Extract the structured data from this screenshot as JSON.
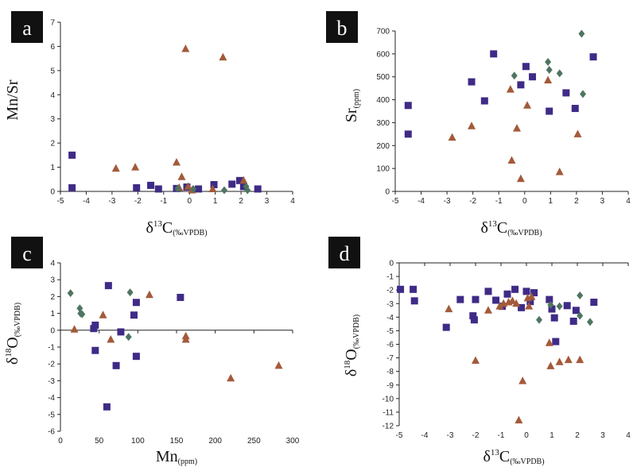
{
  "colors": {
    "square": "#3f2b87",
    "triangle": "#a35a3a",
    "diamond": "#4e7560"
  },
  "chart_data": [
    {
      "type": "scatter",
      "panel_label": "a",
      "xlabel": {
        "main": "δ",
        "sup": "13",
        "post": "C",
        "sub": "(‰VPDB)"
      },
      "ylabel": {
        "main": "Mn/Sr",
        "sub": ""
      },
      "xlim": [
        -5,
        4
      ],
      "ylim": [
        0,
        7
      ],
      "xticks": [
        "-5",
        "-4",
        "-3",
        "-2",
        "-1",
        "0",
        "1",
        "2",
        "3",
        "4"
      ],
      "yticks": [
        "0",
        "1",
        "2",
        "3",
        "4",
        "5",
        "6",
        "7"
      ],
      "grid": false,
      "series": [
        {
          "marker": "square",
          "points": [
            [
              -4.55,
              1.5
            ],
            [
              -4.55,
              0.15
            ],
            [
              -2.05,
              0.15
            ],
            [
              -1.5,
              0.25
            ],
            [
              -1.2,
              0.1
            ],
            [
              -0.5,
              0.12
            ],
            [
              -0.1,
              0.18
            ],
            [
              0.35,
              0.1
            ],
            [
              0.95,
              0.28
            ],
            [
              1.65,
              0.3
            ],
            [
              1.95,
              0.45
            ],
            [
              2.1,
              0.2
            ],
            [
              2.65,
              0.1
            ]
          ]
        },
        {
          "marker": "triangle",
          "points": [
            [
              -2.85,
              0.95
            ],
            [
              -2.1,
              1.0
            ],
            [
              -0.5,
              1.2
            ],
            [
              -0.3,
              0.6
            ],
            [
              -0.15,
              5.9
            ],
            [
              -0.05,
              0.2
            ],
            [
              0.1,
              0.05
            ],
            [
              0.9,
              0.1
            ],
            [
              1.3,
              5.55
            ],
            [
              2.1,
              0.45
            ],
            [
              -0.4,
              0.15
            ]
          ]
        },
        {
          "marker": "diamond",
          "points": [
            [
              -0.45,
              0.12
            ],
            [
              0.15,
              0.1
            ],
            [
              1.35,
              0.05
            ],
            [
              2.2,
              0.2
            ],
            [
              2.25,
              0.05
            ]
          ]
        }
      ]
    },
    {
      "type": "scatter",
      "panel_label": "b",
      "xlabel": {
        "main": "δ",
        "sup": "13",
        "post": "C",
        "sub": "(‰VPDB)"
      },
      "ylabel": {
        "main": "Sr",
        "sub": "(ppm)"
      },
      "xlim": [
        -5,
        4
      ],
      "ylim": [
        0,
        700
      ],
      "xticks": [
        "-5",
        "-4",
        "-3",
        "-2",
        "-1",
        "0",
        "1",
        "2",
        "3",
        "4"
      ],
      "yticks": [
        "0",
        "100",
        "200",
        "300",
        "400",
        "500",
        "600",
        "700"
      ],
      "grid": false,
      "series": [
        {
          "marker": "square",
          "points": [
            [
              -4.5,
              375
            ],
            [
              -4.5,
              250
            ],
            [
              -2.05,
              478
            ],
            [
              -1.55,
              395
            ],
            [
              -1.2,
              600
            ],
            [
              -0.15,
              465
            ],
            [
              0.05,
              545
            ],
            [
              0.3,
              500
            ],
            [
              0.95,
              350
            ],
            [
              1.6,
              430
            ],
            [
              1.95,
              362
            ],
            [
              2.65,
              587
            ]
          ]
        },
        {
          "marker": "triangle",
          "points": [
            [
              -2.8,
              235
            ],
            [
              -2.05,
              285
            ],
            [
              -0.55,
              445
            ],
            [
              -0.5,
              135
            ],
            [
              -0.3,
              275
            ],
            [
              -0.15,
              55
            ],
            [
              0.1,
              375
            ],
            [
              0.9,
              485
            ],
            [
              1.35,
              85
            ],
            [
              2.05,
              250
            ]
          ]
        },
        {
          "marker": "diamond",
          "points": [
            [
              -0.4,
              505
            ],
            [
              0.9,
              565
            ],
            [
              0.95,
              530
            ],
            [
              1.35,
              515
            ],
            [
              2.2,
              688
            ],
            [
              2.25,
              425
            ]
          ]
        }
      ]
    },
    {
      "type": "scatter",
      "panel_label": "c",
      "xlabel": {
        "main": "Mn",
        "sup": "",
        "post": "",
        "sub": "(ppm)"
      },
      "ylabel": {
        "main": "δ",
        "sup": "18",
        "post": "O",
        "sub": "(‰VPDB)"
      },
      "xlim": [
        0,
        300
      ],
      "ylim": [
        -6,
        4
      ],
      "xticks": [
        "0",
        "50",
        "100",
        "150",
        "200",
        "250",
        "300"
      ],
      "yticks": [
        "-6",
        "-5",
        "-4",
        "-3",
        "-2",
        "-1",
        "0",
        "1",
        "2",
        "3",
        "4"
      ],
      "grid": false,
      "series": [
        {
          "marker": "square",
          "points": [
            [
              43,
              0.1
            ],
            [
              45,
              0.3
            ],
            [
              45,
              -1.2
            ],
            [
              60,
              -4.55
            ],
            [
              62,
              2.65
            ],
            [
              72,
              -2.1
            ],
            [
              78,
              -0.1
            ],
            [
              95,
              0.9
            ],
            [
              98,
              1.65
            ],
            [
              98,
              -1.55
            ],
            [
              155,
              1.95
            ]
          ]
        },
        {
          "marker": "triangle",
          "points": [
            [
              18,
              0.05
            ],
            [
              55,
              0.9
            ],
            [
              65,
              -0.55
            ],
            [
              115,
              2.1
            ],
            [
              162,
              -0.35
            ],
            [
              162,
              -0.55
            ],
            [
              220,
              -2.85
            ],
            [
              282,
              -2.1
            ]
          ]
        },
        {
          "marker": "diamond",
          "points": [
            [
              13,
              2.2
            ],
            [
              25,
              1.3
            ],
            [
              26,
              1.0
            ],
            [
              28,
              0.95
            ],
            [
              88,
              -0.4
            ],
            [
              90,
              2.25
            ]
          ]
        }
      ]
    },
    {
      "type": "scatter",
      "panel_label": "d",
      "xlabel": {
        "main": "δ",
        "sup": "13",
        "post": "C",
        "sub": "(‰VPDB)"
      },
      "ylabel": {
        "main": "δ",
        "sup": "18",
        "post": "O",
        "sub": "(‰VPDB)"
      },
      "xlim": [
        -5,
        4
      ],
      "ylim": [
        -12,
        0
      ],
      "xticks": [
        "-5",
        "-4",
        "-3",
        "-2",
        "-1",
        "0",
        "1",
        "2",
        "3",
        "4"
      ],
      "yticks": [
        "-12",
        "-11",
        "-10",
        "-9",
        "-8",
        "-7",
        "-6",
        "-5",
        "-4",
        "-3",
        "-2",
        "-1",
        "0"
      ],
      "grid": false,
      "series": [
        {
          "marker": "square",
          "points": [
            [
              -4.95,
              -1.95
            ],
            [
              -4.45,
              -1.95
            ],
            [
              -4.4,
              -2.8
            ],
            [
              -3.15,
              -4.75
            ],
            [
              -2.6,
              -2.7
            ],
            [
              -2.1,
              -3.9
            ],
            [
              -2.05,
              -4.2
            ],
            [
              -2.0,
              -2.7
            ],
            [
              -1.5,
              -2.1
            ],
            [
              -1.2,
              -2.75
            ],
            [
              -0.95,
              -3.2
            ],
            [
              -0.75,
              -2.3
            ],
            [
              -0.45,
              -1.95
            ],
            [
              -0.2,
              -3.3
            ],
            [
              0.0,
              -2.1
            ],
            [
              0.15,
              -2.85
            ],
            [
              0.3,
              -2.2
            ],
            [
              0.9,
              -2.7
            ],
            [
              1.0,
              -3.4
            ],
            [
              1.1,
              -4.05
            ],
            [
              1.15,
              -5.8
            ],
            [
              1.6,
              -3.15
            ],
            [
              1.85,
              -4.3
            ],
            [
              1.95,
              -3.5
            ],
            [
              2.65,
              -2.9
            ]
          ]
        },
        {
          "marker": "triangle",
          "points": [
            [
              -3.05,
              -3.4
            ],
            [
              -2.0,
              -7.2
            ],
            [
              -1.5,
              -3.5
            ],
            [
              -1.05,
              -3.2
            ],
            [
              -0.9,
              -3.0
            ],
            [
              -0.7,
              -2.9
            ],
            [
              -0.55,
              -2.8
            ],
            [
              -0.4,
              -3.0
            ],
            [
              -0.3,
              -11.6
            ],
            [
              -0.15,
              -8.7
            ],
            [
              0.05,
              -2.6
            ],
            [
              0.1,
              -3.2
            ],
            [
              0.2,
              -2.5
            ],
            [
              0.9,
              -5.9
            ],
            [
              0.95,
              -7.6
            ],
            [
              1.3,
              -7.3
            ],
            [
              1.65,
              -7.15
            ],
            [
              2.1,
              -7.15
            ]
          ]
        },
        {
          "marker": "diamond",
          "points": [
            [
              0.5,
              -4.2
            ],
            [
              0.95,
              -3.1
            ],
            [
              1.3,
              -3.2
            ],
            [
              2.1,
              -2.4
            ],
            [
              2.1,
              -3.9
            ],
            [
              2.5,
              -4.35
            ]
          ]
        }
      ]
    }
  ]
}
